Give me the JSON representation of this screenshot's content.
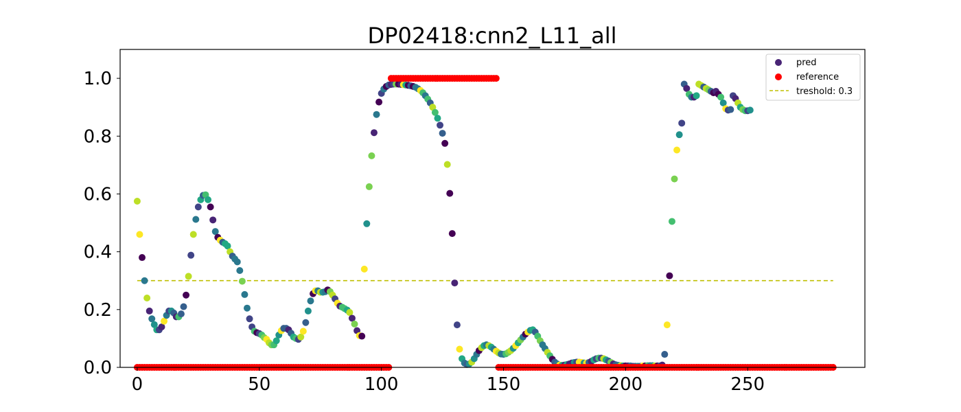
{
  "chart_data": {
    "type": "scatter",
    "title": "DP02418:cnn2_L11_all",
    "xlabel": "",
    "ylabel": "",
    "xlim": [
      -7,
      298
    ],
    "ylim": [
      0,
      1.1
    ],
    "x_ticks": [
      0,
      50,
      100,
      150,
      200,
      250
    ],
    "y_ticks": [
      0.0,
      0.2,
      0.4,
      0.6,
      0.8,
      1.0
    ],
    "x_tick_labels": [
      "0",
      "50",
      "100",
      "150",
      "200",
      "250"
    ],
    "y_tick_labels": [
      "0.0",
      "0.2",
      "0.4",
      "0.6",
      "0.8",
      "1.0"
    ],
    "grid": false,
    "legend": {
      "placement": "top-right",
      "entries": [
        {
          "label": "pred",
          "marker": "dot",
          "color": "#482475"
        },
        {
          "label": "reference",
          "marker": "dot",
          "color": "#ff0000"
        },
        {
          "label": "treshold: 0.3",
          "marker": "dashed-line",
          "color": "#bfbf00"
        }
      ]
    },
    "threshold": {
      "name": "treshold: 0.3",
      "y": 0.3,
      "x_range": [
        0,
        285
      ],
      "color": "#bfbf00"
    },
    "series": [
      {
        "name": "pred",
        "colormap": "viridis",
        "x_start": 0,
        "values": [
          0.575,
          0.46,
          0.38,
          0.3,
          0.24,
          0.195,
          0.168,
          0.148,
          0.13,
          0.13,
          0.14,
          0.16,
          0.18,
          0.195,
          0.195,
          0.188,
          0.175,
          0.175,
          0.185,
          0.21,
          0.25,
          0.315,
          0.388,
          0.46,
          0.512,
          0.555,
          0.58,
          0.595,
          0.597,
          0.58,
          0.555,
          0.51,
          0.47,
          0.45,
          0.44,
          0.433,
          0.428,
          0.42,
          0.4,
          0.385,
          0.375,
          0.365,
          0.335,
          0.298,
          0.252,
          0.205,
          0.168,
          0.14,
          0.125,
          0.12,
          0.117,
          0.112,
          0.103,
          0.097,
          0.085,
          0.078,
          0.078,
          0.092,
          0.112,
          0.127,
          0.135,
          0.135,
          0.13,
          0.118,
          0.105,
          0.1,
          0.097,
          0.105,
          0.125,
          0.155,
          0.195,
          0.23,
          0.255,
          0.265,
          0.265,
          0.26,
          0.26,
          0.262,
          0.268,
          0.262,
          0.25,
          0.237,
          0.222,
          0.212,
          0.208,
          0.203,
          0.198,
          0.19,
          0.17,
          0.15,
          0.127,
          0.11,
          0.108,
          0.34,
          0.497,
          0.625,
          0.732,
          0.812,
          0.875,
          0.918,
          0.948,
          0.963,
          0.972,
          0.977,
          0.979,
          0.98,
          0.98,
          0.98,
          0.979,
          0.978,
          0.977,
          0.976,
          0.974,
          0.972,
          0.969,
          0.964,
          0.958,
          0.95,
          0.94,
          0.928,
          0.915,
          0.9,
          0.882,
          0.862,
          0.838,
          0.81,
          0.775,
          0.702,
          0.602,
          0.463,
          0.292,
          0.147,
          0.063,
          0.03,
          0.015,
          0.01,
          0.012,
          0.018,
          0.03,
          0.045,
          0.058,
          0.068,
          0.075,
          0.078,
          0.075,
          0.07,
          0.063,
          0.056,
          0.05,
          0.046,
          0.045,
          0.047,
          0.052,
          0.058,
          0.066,
          0.075,
          0.085,
          0.095,
          0.105,
          0.115,
          0.122,
          0.128,
          0.13,
          0.122,
          0.108,
          0.092,
          0.078,
          0.065,
          0.052,
          0.04,
          0.028,
          0.018,
          0.012,
          0.008,
          0.007,
          0.008,
          0.01,
          0.012,
          0.015,
          0.017,
          0.018,
          0.018,
          0.017,
          0.015,
          0.015,
          0.017,
          0.021,
          0.026,
          0.03,
          0.032,
          0.032,
          0.03,
          0.026,
          0.022,
          0.017,
          0.012,
          0.009,
          0.007,
          0.006,
          0.005,
          0.005,
          0.005,
          0.005,
          0.004,
          0.004,
          0.004,
          0.004,
          0.005,
          0.005,
          0.006,
          0.006,
          0.006,
          0.005,
          0.005,
          0.005,
          0.008,
          0.045,
          0.147,
          0.317,
          0.505,
          0.652,
          0.752,
          0.805,
          0.845,
          0.98,
          0.965,
          0.945,
          0.935,
          0.935,
          0.94,
          0.98,
          0.975,
          0.97,
          0.965,
          0.96,
          0.955,
          0.95,
          0.955,
          0.945,
          0.935,
          0.915,
          0.895,
          0.89,
          0.892,
          0.94,
          0.93,
          0.915,
          0.9,
          0.892,
          0.888,
          0.888,
          0.89
        ]
      },
      {
        "name": "reference",
        "color": "#ff0000",
        "segments": [
          {
            "x_from": 0,
            "x_to": 103,
            "y": 0
          },
          {
            "x_from": 104,
            "x_to": 147,
            "y": 1
          },
          {
            "x_from": 148,
            "x_to": 285,
            "y": 0
          }
        ]
      }
    ]
  }
}
